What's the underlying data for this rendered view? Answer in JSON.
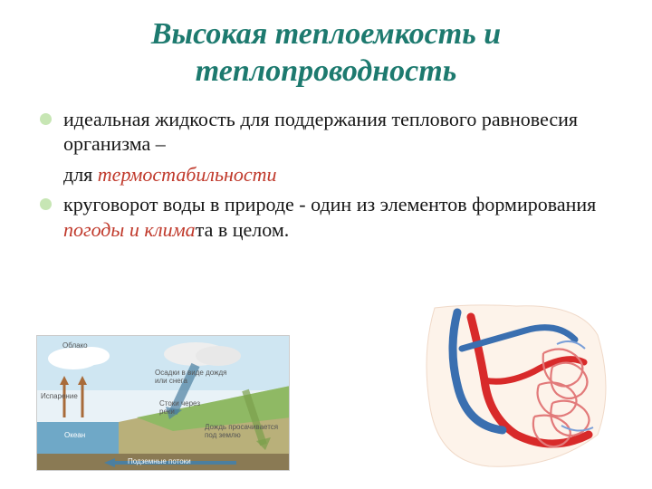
{
  "title": {
    "text": "Высокая теплоемкость и теплопроводность",
    "color": "#1d7a6f",
    "fontsize": 34
  },
  "bullets": {
    "marker_color": "#c7e6b4",
    "item1_line1": "идеальная жидкость для поддержания теплового равновесия организма –",
    "item1_line2_prefix": " для ",
    "item1_line2_em": "термостабильности",
    "item2_prefix": "круговорот воды в природе -    один из элементов формирования ",
    "item2_em": "погоды и клима",
    "item2_suffix": "та в целом.",
    "text_color": "#171717",
    "em_color": "#c0392b",
    "fontsize": 22
  },
  "water_cycle": {
    "type": "infographic",
    "background_color": "#e9f2f7",
    "sky_color": "#cfe6f2",
    "ocean_color": "#6fa8c7",
    "land_color": "#b9b07a",
    "grass_color": "#8fb964",
    "cloud_color": "#ffffff",
    "arrow_up_color": "#a86b3a",
    "arrow_rain_color": "#4b7fa0",
    "label_cloud": "Облако",
    "label_evap": "Испарение",
    "label_ocean": "Океан",
    "label_precip": "Осадки в виде дождя или снега",
    "label_runoff": "Стоки через реки",
    "label_infilt": "Дождь просачивается под землю",
    "label_ground": "Подземные потоки",
    "label_fontsize": 8,
    "label_color": "#555555"
  },
  "anatomy": {
    "type": "infographic",
    "artery_color": "#d82a2a",
    "vein_color": "#3a6fb0",
    "capillary_color": "#e27a7a",
    "background_color": "#ffffff",
    "outline_color": "#f0d9c8"
  }
}
